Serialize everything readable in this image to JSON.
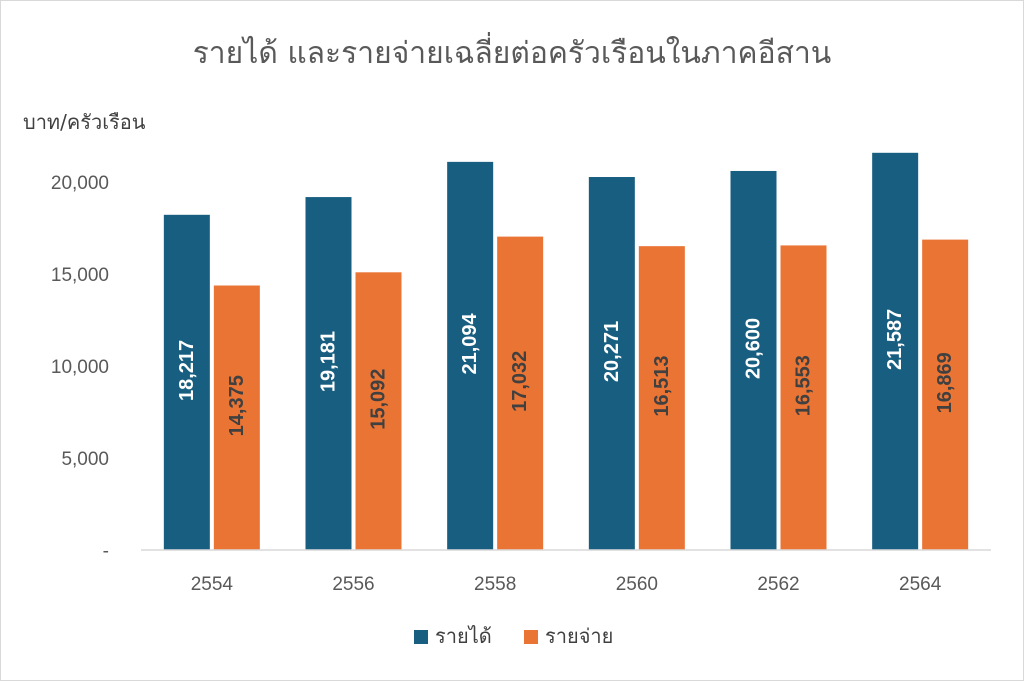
{
  "chart_data": {
    "type": "bar",
    "title": "รายได้ และรายจ่ายเฉลี่ยต่อครัวเรือนในภาคอีสาน",
    "ylabel": "บาท/ครัวเรือน",
    "xlabel": "",
    "categories": [
      "2554",
      "2556",
      "2558",
      "2560",
      "2562",
      "2564"
    ],
    "series": [
      {
        "name": "รายได้",
        "color": "#175e80",
        "values": [
          18217,
          19181,
          21094,
          20271,
          20600,
          21587
        ],
        "labels": [
          "18,217",
          "19,181",
          "21,094",
          "20,271",
          "20,600",
          "21,587"
        ]
      },
      {
        "name": "รายจ่าย",
        "color": "#ea7434",
        "values": [
          14375,
          15092,
          17032,
          16513,
          16553,
          16869
        ],
        "labels": [
          "14,375",
          "15,092",
          "17,032",
          "16,513",
          "16,553",
          "16,869"
        ]
      }
    ],
    "ylim": [
      0,
      20000
    ],
    "yticks": [
      0,
      5000,
      10000,
      15000,
      20000
    ],
    "ytick_labels": [
      "-",
      "5,000",
      "10,000",
      "15,000",
      "20,000"
    ],
    "grid": false,
    "legend_position": "bottom",
    "data_label_colors": [
      "#ffffff",
      "#404040"
    ]
  }
}
